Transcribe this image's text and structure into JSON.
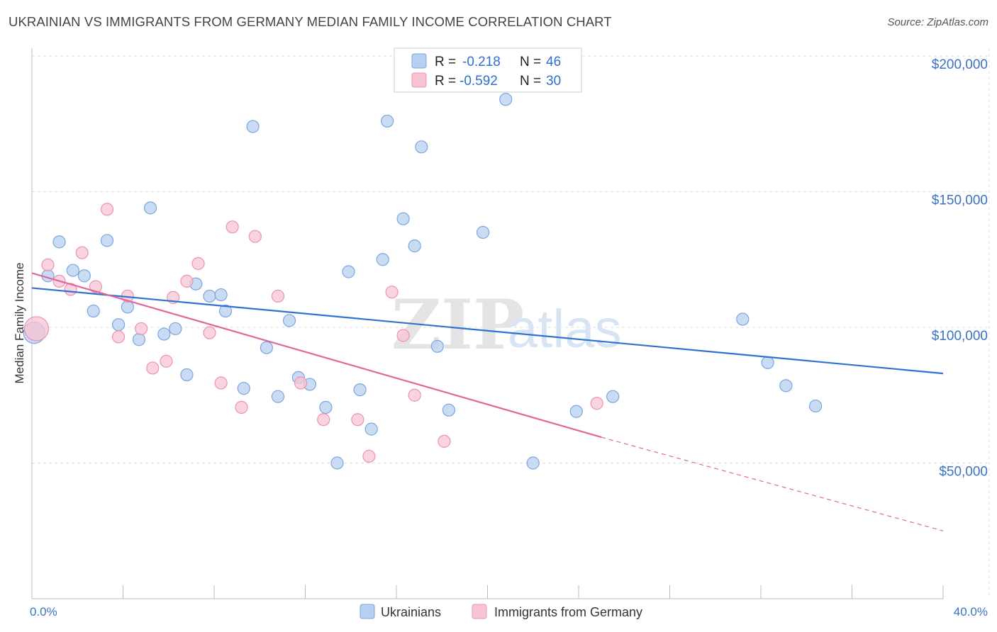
{
  "header": {
    "title": "UKRAINIAN VS IMMIGRANTS FROM GERMANY MEDIAN FAMILY INCOME CORRELATION CHART",
    "source": "Source: ZipAtlas.com"
  },
  "watermark": {
    "zip": "ZIP",
    "atlas": "atlas"
  },
  "colors": {
    "blue_fill": "#b8d0f0",
    "blue_stroke": "#7aa6de",
    "blue_line": "#2f72d0",
    "pink_fill": "#f7c4d4",
    "pink_stroke": "#eb93b0",
    "pink_line": "#e0679a",
    "grid": "#dddddd",
    "tick_text": "#3b73c4"
  },
  "legend": {
    "rows": [
      {
        "r_label": "R = ",
        "r_value": "-0.218",
        "n_label": "N = ",
        "n_value": "46"
      },
      {
        "r_label": "R = ",
        "r_value": "-0.592",
        "n_label": "N = ",
        "n_value": "30"
      }
    ]
  },
  "bottom_legend": [
    "Ukrainians",
    "Immigrants from Germany"
  ],
  "chart_data": {
    "type": "scatter",
    "title": "UKRAINIAN VS IMMIGRANTS FROM GERMANY MEDIAN FAMILY INCOME CORRELATION CHART",
    "xlabel": "",
    "ylabel": "Median Family Income",
    "xlim": [
      0,
      40
    ],
    "ylim": [
      0,
      210000
    ],
    "x_tick_labels": [
      "0.0%",
      "40.0%"
    ],
    "y_ticks": [
      50000,
      100000,
      150000,
      200000
    ],
    "y_tick_labels": [
      "$50,000",
      "$100,000",
      "$150,000",
      "$200,000"
    ],
    "grid": true,
    "legend_position": "top-center",
    "series": [
      {
        "name": "Ukrainians",
        "r": -0.218,
        "n": 46,
        "trend": {
          "x0": 0,
          "y0": 114500,
          "x1": 40,
          "y1": 83000
        },
        "points": [
          [
            0.1,
            98000
          ],
          [
            0.7,
            119000
          ],
          [
            1.2,
            131500
          ],
          [
            1.8,
            121000
          ],
          [
            2.3,
            119000
          ],
          [
            2.7,
            106000
          ],
          [
            3.3,
            132000
          ],
          [
            3.8,
            101000
          ],
          [
            4.2,
            107500
          ],
          [
            4.7,
            95500
          ],
          [
            5.2,
            144000
          ],
          [
            5.8,
            97500
          ],
          [
            6.3,
            99500
          ],
          [
            6.8,
            82500
          ],
          [
            7.2,
            116000
          ],
          [
            7.8,
            111500
          ],
          [
            8.3,
            112000
          ],
          [
            8.5,
            106000
          ],
          [
            9.3,
            77500
          ],
          [
            9.7,
            174000
          ],
          [
            10.3,
            92500
          ],
          [
            10.8,
            74500
          ],
          [
            11.3,
            102500
          ],
          [
            11.7,
            81500
          ],
          [
            12.2,
            79000
          ],
          [
            12.9,
            70500
          ],
          [
            13.4,
            50000
          ],
          [
            13.9,
            120500
          ],
          [
            14.4,
            77000
          ],
          [
            14.9,
            62500
          ],
          [
            15.4,
            125000
          ],
          [
            15.6,
            176000
          ],
          [
            16.3,
            140000
          ],
          [
            16.8,
            130000
          ],
          [
            17.1,
            166500
          ],
          [
            17.8,
            93000
          ],
          [
            18.3,
            69500
          ],
          [
            19.8,
            135000
          ],
          [
            20.8,
            184000
          ],
          [
            22.0,
            50000
          ],
          [
            23.9,
            69000
          ],
          [
            25.5,
            74500
          ],
          [
            31.2,
            103000
          ],
          [
            32.3,
            87000
          ],
          [
            33.1,
            78500
          ],
          [
            34.4,
            71000
          ]
        ]
      },
      {
        "name": "Immigrants from Germany",
        "r": -0.592,
        "n": 30,
        "trend": {
          "x0": 0,
          "y0": 120000,
          "x1": 25,
          "y1": 59500,
          "dash_x1": 40,
          "dash_y1": 25000
        },
        "points": [
          [
            0.2,
            99500
          ],
          [
            0.7,
            123000
          ],
          [
            1.2,
            117000
          ],
          [
            1.7,
            114000
          ],
          [
            2.2,
            127500
          ],
          [
            2.8,
            115000
          ],
          [
            3.8,
            96500
          ],
          [
            3.3,
            143500
          ],
          [
            4.2,
            111500
          ],
          [
            4.8,
            99500
          ],
          [
            5.3,
            85000
          ],
          [
            5.9,
            87500
          ],
          [
            6.2,
            111000
          ],
          [
            6.8,
            117000
          ],
          [
            7.3,
            123500
          ],
          [
            7.8,
            98000
          ],
          [
            8.3,
            79500
          ],
          [
            8.8,
            137000
          ],
          [
            9.2,
            70500
          ],
          [
            9.8,
            133500
          ],
          [
            10.8,
            111500
          ],
          [
            11.8,
            79500
          ],
          [
            12.8,
            66000
          ],
          [
            14.3,
            66000
          ],
          [
            14.8,
            52500
          ],
          [
            15.8,
            113000
          ],
          [
            16.3,
            97000
          ],
          [
            16.8,
            75000
          ],
          [
            18.1,
            58000
          ],
          [
            24.8,
            72000
          ]
        ]
      }
    ]
  }
}
